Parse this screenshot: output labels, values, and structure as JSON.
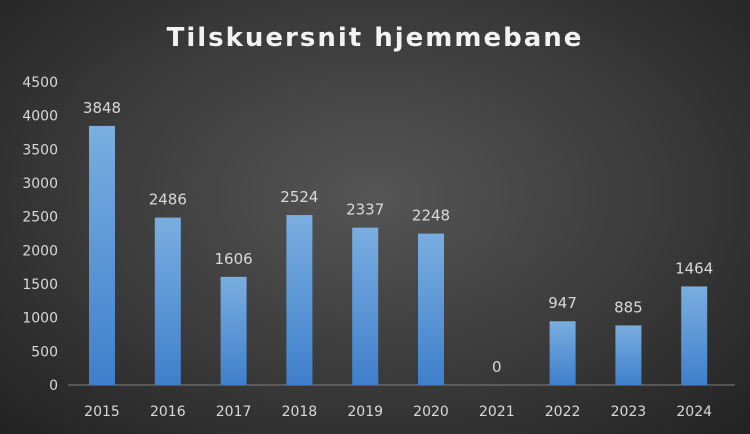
{
  "chart_data": {
    "type": "bar",
    "title": "Tilskuersnit hjemmebane",
    "categories": [
      "2015",
      "2016",
      "2017",
      "2018",
      "2019",
      "2020",
      "2021",
      "2022",
      "2023",
      "2024"
    ],
    "values": [
      3848,
      2486,
      1606,
      2524,
      2337,
      2248,
      0,
      947,
      885,
      1464
    ],
    "xlabel": "",
    "ylabel": "",
    "ylim": [
      0,
      4500
    ],
    "yticks": [
      0,
      500,
      1000,
      1500,
      2000,
      2500,
      3000,
      3500,
      4000,
      4500
    ],
    "grid": false,
    "legend": "none",
    "data_labels": true,
    "colors": {
      "bar_top": "#7aaee0",
      "bar_bottom": "#3f7fcb",
      "text": "#d9d9d9",
      "background": "#3a3a3a"
    }
  }
}
